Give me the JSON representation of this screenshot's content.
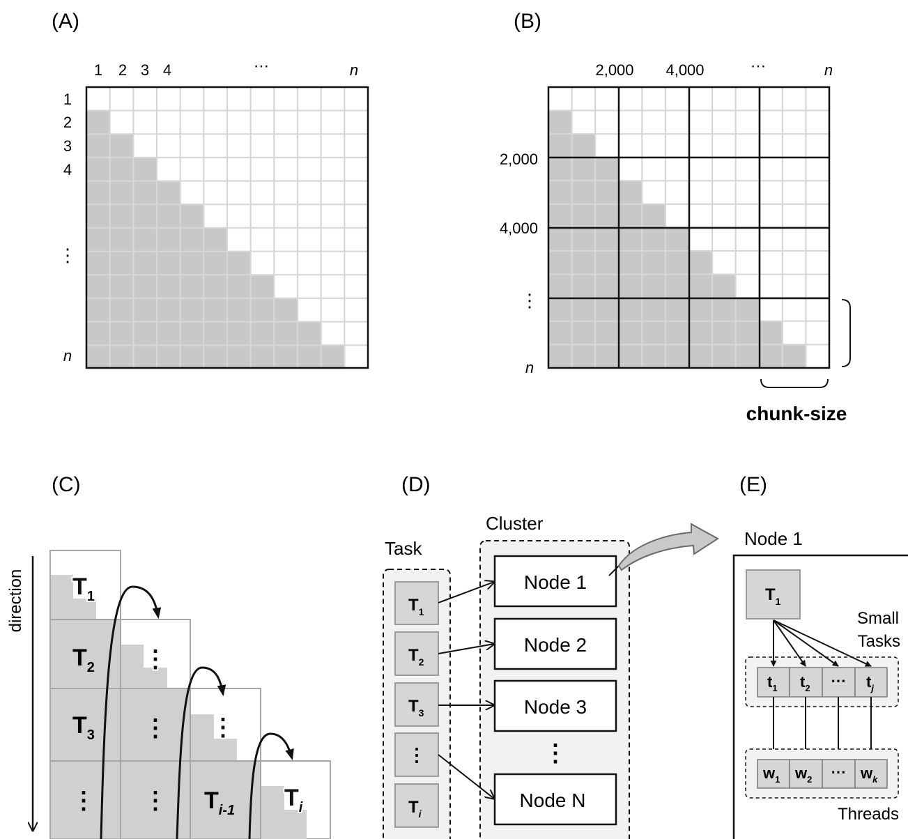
{
  "panels": {
    "a": {
      "label": "(A)",
      "col_labels": [
        "1",
        "2",
        "3",
        "4",
        "⋯",
        "n"
      ],
      "row_labels": [
        "1",
        "2",
        "3",
        "4",
        "⋮",
        "n"
      ],
      "grid_size": 12
    },
    "b": {
      "label": "(B)",
      "col_labels": [
        "2,000",
        "4,000",
        "⋯",
        "n"
      ],
      "row_labels": [
        "2,000",
        "4,000",
        "⋮",
        "n"
      ],
      "chunk_label": "chunk-size"
    },
    "c": {
      "label": "(C)",
      "direction_label": "direction",
      "task_prefix": "T",
      "subscripts": {
        "t1": "1",
        "t2": "2",
        "t3": "3",
        "ti_minus_1": "i-1",
        "ti": "i"
      },
      "dots": "⋮"
    },
    "d": {
      "label": "(D)",
      "task_title": "Task",
      "cluster_title": "Cluster",
      "task_prefix": "T",
      "task_subs": [
        "1",
        "2",
        "3",
        "",
        "i"
      ],
      "task_dots": "⋮",
      "nodes": [
        "Node 1",
        "Node 2",
        "Node 3",
        "Node N"
      ],
      "node_dots": "⋮"
    },
    "e": {
      "label": "(E)",
      "node_title": "Node 1",
      "task_prefix": "T",
      "task_sub": "1",
      "small_tasks_line1": "Small",
      "small_tasks_line2": "Tasks",
      "small_prefix": "t",
      "small_subs": [
        "1",
        "2",
        "",
        "j"
      ],
      "worker_prefix": "w",
      "worker_subs": [
        "1",
        "2",
        "",
        "k"
      ],
      "ellipsis": "⋯",
      "threads_label": "Threads"
    }
  },
  "colors": {
    "shade": "#c8c8c8",
    "grid_line": "#d7d7d7",
    "border": "#111111",
    "box_fill": "#d6d6d6",
    "box_stroke": "#9a9a9a",
    "dashed_fill": "#f2f2f2",
    "big_arrow_fill": "#c9c9c9"
  }
}
